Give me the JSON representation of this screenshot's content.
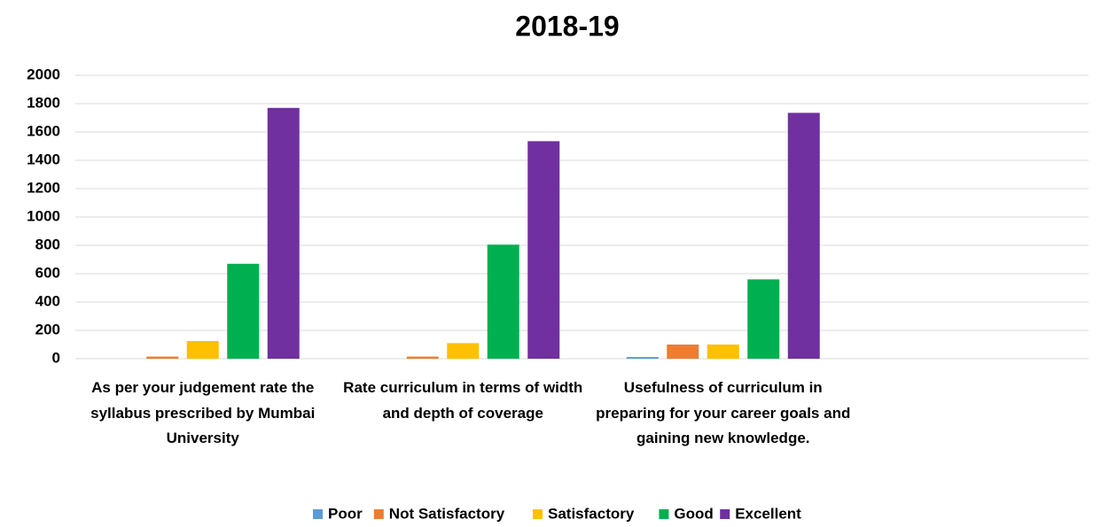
{
  "chart_data": {
    "type": "bar",
    "title": "2018-19",
    "categories": [
      "As per your judgement rate the syllabus prescribed by Mumbai University",
      "Rate curriculum in terms of width and depth of coverage",
      "Usefulness of curriculum in preparing for your career goals and gaining new knowledge.",
      null
    ],
    "series": [
      {
        "name": "Poor",
        "color": "#5b9bd5",
        "values": [
          0,
          0,
          12,
          null
        ]
      },
      {
        "name": "Not Satisfactory",
        "color": "#ed7d31",
        "values": [
          15,
          15,
          100,
          null
        ]
      },
      {
        "name": "Satisfactory",
        "color": "#ffc000",
        "values": [
          125,
          110,
          100,
          null
        ]
      },
      {
        "name": "Good",
        "color": "#00b050",
        "values": [
          670,
          805,
          560,
          null
        ]
      },
      {
        "name": "Excellent",
        "color": "#7030a0",
        "values": [
          1770,
          1535,
          1735,
          null
        ]
      }
    ],
    "ylim": [
      0,
      2000
    ],
    "yticks": [
      0,
      200,
      400,
      600,
      800,
      1000,
      1200,
      1400,
      1600,
      1800,
      2000
    ],
    "grid": true,
    "legend": "bottom"
  }
}
